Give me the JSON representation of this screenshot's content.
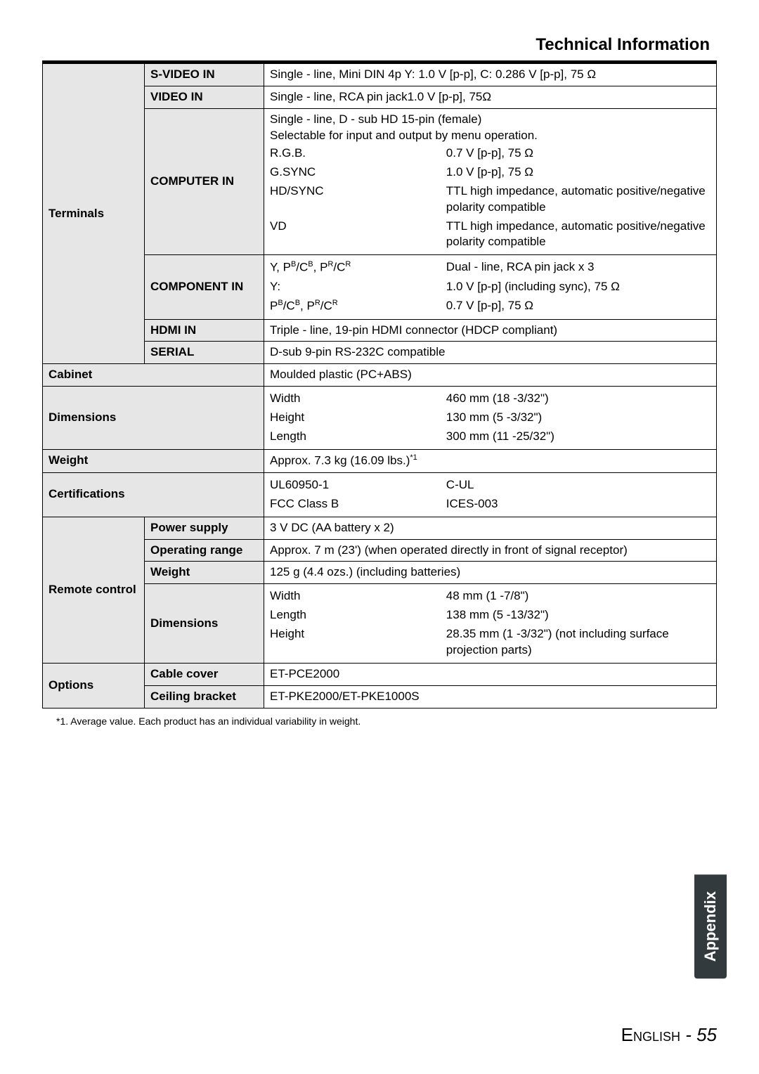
{
  "header": {
    "title": "Technical Information"
  },
  "colors": {
    "label_bg": "#e6e6e6",
    "tab_bg": "#333a3e",
    "tab_fg": "#ffffff",
    "border": "#000000",
    "page_bg": "#ffffff"
  },
  "table": {
    "terminals": {
      "label": "Terminals",
      "svideo": {
        "label": "S-VIDEO IN",
        "value": "Single - line, Mini DIN 4p Y: 1.0 V [p-p], C: 0.286 V [p-p], 75 Ω"
      },
      "video": {
        "label": "VIDEO IN",
        "value": "Single - line, RCA pin jack1.0 V [p-p], 75Ω"
      },
      "computer": {
        "label": "COMPUTER IN",
        "intro": "Single - line, D - sub HD 15-pin (female)\nSelectable for input and output by menu operation.",
        "rows": [
          {
            "k": "R.G.B.",
            "v": "0.7 V [p-p], 75 Ω"
          },
          {
            "k": "G.SYNC",
            "v": "1.0 V [p-p], 75 Ω"
          },
          {
            "k": "HD/SYNC",
            "v": "TTL high impedance, automatic positive/negative polarity compatible"
          },
          {
            "k": "VD",
            "v": "TTL high impedance, automatic positive/negative polarity compatible"
          }
        ]
      },
      "component": {
        "label": "COMPONENT IN",
        "rows": [
          {
            "k": "Y, P",
            "k2": "B",
            "k3": "/C",
            "k4": "B",
            "k5": ", P",
            "k6": "R",
            "k7": "/C",
            "k8": "R",
            "v": "Dual - line, RCA pin jack x 3"
          },
          {
            "k": "Y:",
            "v": "1.0 V [p-p] (including sync), 75 Ω"
          },
          {
            "k": "P",
            "k2": "B",
            "k3": "/C",
            "k4": "B",
            "k5": ", P",
            "k6": "R",
            "k7": "/C",
            "k8": "R",
            "v": "0.7 V [p-p], 75 Ω"
          }
        ]
      },
      "hdmi": {
        "label": "HDMI IN",
        "value": "Triple - line, 19-pin HDMI connector (HDCP compliant)"
      },
      "serial": {
        "label": "SERIAL",
        "value": "D-sub 9-pin RS-232C compatible"
      }
    },
    "cabinet": {
      "label": "Cabinet",
      "value": "Moulded plastic (PC+ABS)"
    },
    "dimensions": {
      "label": "Dimensions",
      "rows": [
        {
          "k": "Width",
          "v": "460 mm (18 -3/32\")"
        },
        {
          "k": "Height",
          "v": "130 mm (5 -3/32\")"
        },
        {
          "k": "Length",
          "v": "300 mm (11 -25/32\")"
        }
      ]
    },
    "weight": {
      "label": "Weight",
      "value": "Approx. 7.3 kg (16.09 lbs.)",
      "sup": "*1"
    },
    "certifications": {
      "label": "Certifications",
      "left1": "UL60950-1",
      "right1": "C-UL",
      "left2": "FCC Class B",
      "right2": "ICES-003"
    },
    "remote": {
      "label": "Remote control",
      "power": {
        "label": "Power supply",
        "value": "3 V DC (AA battery x 2)"
      },
      "range": {
        "label": "Operating range",
        "value": "Approx. 7 m (23') (when operated directly in front of signal receptor)"
      },
      "weight": {
        "label": "Weight",
        "value": "125 g (4.4 ozs.) (including batteries)"
      },
      "dims": {
        "label": "Dimensions",
        "rows": [
          {
            "k": "Width",
            "v": "48 mm (1 -7/8\")"
          },
          {
            "k": "Length",
            "v": "138 mm (5 -13/32\")"
          },
          {
            "k": "Height",
            "v": "28.35 mm (1 -3/32\") (not including surface projection parts)"
          }
        ]
      }
    },
    "options": {
      "label": "Options",
      "cable": {
        "label": "Cable cover",
        "value": "ET-PCE2000"
      },
      "ceiling": {
        "label": "Ceiling bracket",
        "value": "ET-PKE2000/ET-PKE1000S"
      }
    }
  },
  "footnote": "*1.  Average value. Each product has an individual variability in weight.",
  "side_tab": "Appendix",
  "footer": {
    "language": "English",
    "sep": " - ",
    "page": "55"
  }
}
